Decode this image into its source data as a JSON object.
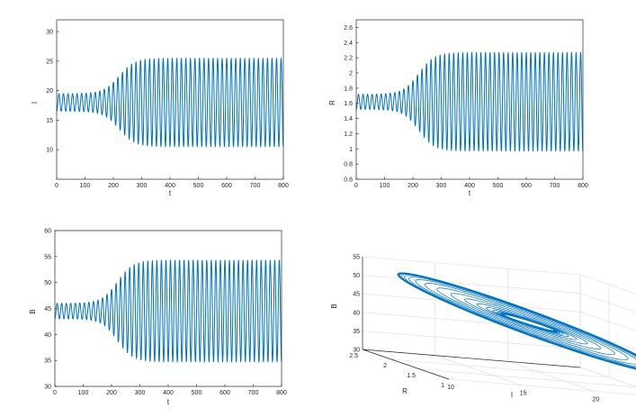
{
  "chart_data": [
    {
      "type": "line",
      "xlabel": "t",
      "ylabel": "I",
      "xlim": [
        0,
        800
      ],
      "ylim": [
        5,
        32
      ],
      "xticks": [
        "0",
        "100",
        "200",
        "300",
        "400",
        "500",
        "600",
        "700",
        "800"
      ],
      "yticks": [
        "10",
        "15",
        "20",
        "25",
        "30"
      ],
      "grid": false,
      "series": [
        {
          "mean": 18,
          "initial_amplitude": 1.5,
          "final_amplitude": 7.5,
          "period": 16,
          "growth_center": 220,
          "growth_width": 60
        }
      ]
    },
    {
      "type": "line",
      "xlabel": "t",
      "ylabel": "R",
      "xlim": [
        0,
        800
      ],
      "ylim": [
        0.6,
        2.7
      ],
      "xticks": [
        "0",
        "100",
        "200",
        "300",
        "400",
        "500",
        "600",
        "700",
        "800"
      ],
      "yticks": [
        "0.6",
        "0.8",
        "1",
        "1.2",
        "1.4",
        "1.6",
        "1.8",
        "2",
        "2.2",
        "2.4",
        "2.6"
      ],
      "grid": false,
      "series": [
        {
          "mean": 1.62,
          "initial_amplitude": 0.1,
          "final_amplitude": 0.65,
          "period": 16,
          "growth_center": 220,
          "growth_width": 60
        }
      ]
    },
    {
      "type": "line",
      "xlabel": "t",
      "ylabel": "B",
      "xlim": [
        0,
        800
      ],
      "ylim": [
        30,
        60
      ],
      "xticks": [
        "0",
        "100",
        "200",
        "300",
        "400",
        "500",
        "600",
        "700",
        "800"
      ],
      "yticks": [
        "30",
        "35",
        "40",
        "45",
        "50",
        "55",
        "60"
      ],
      "grid": false,
      "series": [
        {
          "mean": 44.5,
          "initial_amplitude": 1.5,
          "final_amplitude": 9.8,
          "period": 16,
          "growth_center": 220,
          "growth_width": 60
        }
      ]
    },
    {
      "type": "line",
      "subtype": "3d-phase-portrait",
      "xlabel": "I",
      "ylabel": "R",
      "zlabel": "B",
      "xlim": [
        10,
        25
      ],
      "ylim": [
        1,
        2.5
      ],
      "zlim": [
        30,
        55
      ],
      "xticks": [
        "10",
        "15",
        "20",
        "25"
      ],
      "yticks": [
        "1",
        "1.5",
        "2",
        "2.5"
      ],
      "zticks": [
        "30",
        "35",
        "40",
        "45",
        "50",
        "55"
      ],
      "grid": true,
      "series": [
        {
          "center": {
            "I": 18,
            "R": 1.62,
            "B": 44.5
          },
          "initial_amplitude": {
            "I": 1.5,
            "R": 0.1,
            "B": 1.5
          },
          "final_amplitude": {
            "I": 7.5,
            "R": 0.65,
            "B": 9.8
          }
        }
      ]
    }
  ]
}
